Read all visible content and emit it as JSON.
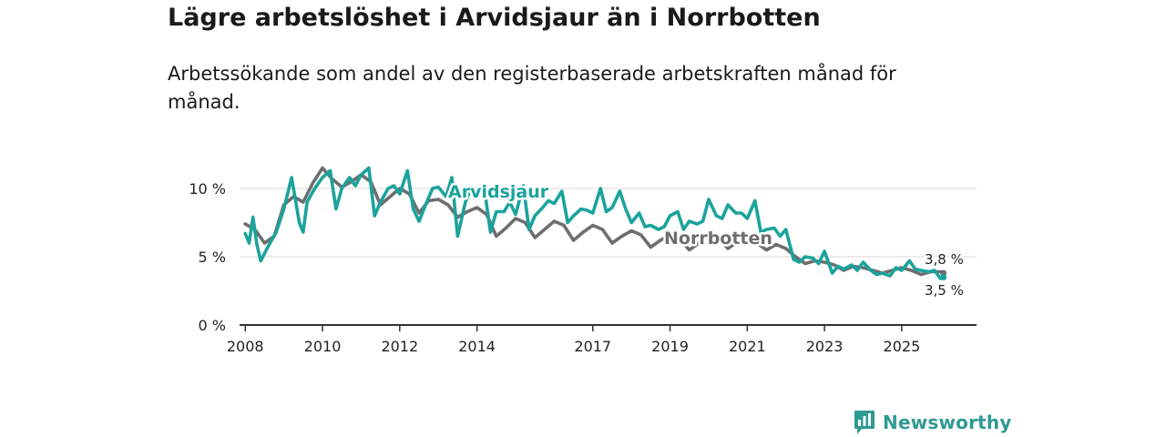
{
  "title": "Lägre arbetslöshet i Arvidsjaur än i Norrbotten",
  "subtitle": "Arbetssökande som andel av den registerbaserade arbetskraften månad för månad.",
  "brand": {
    "name": "Newsworthy",
    "color": "#2f9a92"
  },
  "chart_data": {
    "type": "line",
    "title": "Lägre arbetslöshet i Arvidsjaur än i Norrbotten",
    "xlabel": "",
    "ylabel": "",
    "xlim": [
      2007.9,
      2026.3
    ],
    "ylim": [
      0,
      10
    ],
    "grid": true,
    "x_ticks": [
      {
        "value": 2008,
        "label": "2008"
      },
      {
        "value": 2010,
        "label": "2010"
      },
      {
        "value": 2012,
        "label": "2012"
      },
      {
        "value": 2014,
        "label": "2014"
      },
      {
        "value": 2017,
        "label": "2017"
      },
      {
        "value": 2019,
        "label": "2019"
      },
      {
        "value": 2021,
        "label": "2021"
      },
      {
        "value": 2023,
        "label": "2023"
      },
      {
        "value": 2025,
        "label": "2025"
      }
    ],
    "y_ticks": [
      {
        "value": 0,
        "label": "0 %"
      },
      {
        "value": 5,
        "label": "5 %"
      },
      {
        "value": 10,
        "label": "10 %"
      }
    ],
    "series": [
      {
        "name": "Norrbotten",
        "color": "#6e6e6e",
        "end_label": "3,8 %",
        "x": [
          2008.0,
          2008.25,
          2008.5,
          2008.75,
          2009.0,
          2009.25,
          2009.5,
          2009.75,
          2010.0,
          2010.25,
          2010.5,
          2010.75,
          2011.0,
          2011.25,
          2011.5,
          2011.75,
          2012.0,
          2012.25,
          2012.5,
          2012.75,
          2013.0,
          2013.25,
          2013.5,
          2013.75,
          2014.0,
          2014.25,
          2014.5,
          2014.75,
          2015.0,
          2015.25,
          2015.5,
          2015.75,
          2016.0,
          2016.25,
          2016.5,
          2016.75,
          2017.0,
          2017.25,
          2017.5,
          2017.75,
          2018.0,
          2018.25,
          2018.5,
          2018.75,
          2019.0,
          2019.25,
          2019.5,
          2019.75,
          2020.0,
          2020.25,
          2020.5,
          2020.75,
          2021.0,
          2021.25,
          2021.5,
          2021.75,
          2022.0,
          2022.25,
          2022.5,
          2022.75,
          2023.0,
          2023.25,
          2023.5,
          2023.75,
          2024.0,
          2024.25,
          2024.5,
          2024.75,
          2025.0,
          2025.25,
          2025.5,
          2025.75,
          2026.0,
          2026.08
        ],
        "values": [
          7.4,
          7.0,
          6.0,
          6.5,
          8.8,
          9.4,
          9.0,
          10.4,
          11.5,
          10.7,
          10.1,
          10.5,
          11.0,
          10.5,
          8.8,
          9.4,
          10.0,
          9.6,
          8.2,
          9.1,
          9.2,
          8.8,
          7.9,
          8.3,
          8.6,
          8.1,
          6.5,
          7.1,
          7.8,
          7.5,
          6.4,
          7.0,
          7.6,
          7.3,
          6.2,
          6.8,
          7.3,
          7.0,
          6.0,
          6.5,
          6.9,
          6.6,
          5.7,
          6.2,
          6.6,
          6.3,
          5.5,
          6.0,
          6.6,
          6.4,
          5.6,
          6.1,
          6.4,
          6.0,
          5.5,
          5.9,
          5.6,
          5.0,
          4.5,
          4.7,
          4.6,
          4.4,
          4.0,
          4.3,
          4.2,
          4.0,
          3.8,
          4.0,
          4.2,
          4.0,
          3.7,
          3.9,
          3.9,
          3.8
        ]
      },
      {
        "name": "Arvidsjaur",
        "color": "#1ba39c",
        "end_label": "3,5 %",
        "x": [
          2008.0,
          2008.1,
          2008.2,
          2008.3,
          2008.4,
          2008.6,
          2008.8,
          2009.0,
          2009.2,
          2009.4,
          2009.5,
          2009.6,
          2009.8,
          2010.0,
          2010.2,
          2010.35,
          2010.5,
          2010.7,
          2010.85,
          2011.0,
          2011.2,
          2011.35,
          2011.5,
          2011.7,
          2011.85,
          2012.0,
          2012.2,
          2012.35,
          2012.5,
          2012.7,
          2012.85,
          2013.0,
          2013.2,
          2013.35,
          2013.5,
          2013.7,
          2013.85,
          2014.0,
          2014.2,
          2014.35,
          2014.5,
          2014.7,
          2014.85,
          2015.0,
          2015.2,
          2015.35,
          2015.5,
          2015.7,
          2015.85,
          2016.0,
          2016.2,
          2016.35,
          2016.5,
          2016.7,
          2016.85,
          2017.0,
          2017.2,
          2017.35,
          2017.5,
          2017.7,
          2017.85,
          2018.0,
          2018.2,
          2018.35,
          2018.5,
          2018.7,
          2018.85,
          2019.0,
          2019.2,
          2019.35,
          2019.5,
          2019.7,
          2019.85,
          2020.0,
          2020.2,
          2020.35,
          2020.5,
          2020.7,
          2020.85,
          2021.0,
          2021.2,
          2021.35,
          2021.5,
          2021.7,
          2021.85,
          2022.0,
          2022.2,
          2022.35,
          2022.5,
          2022.7,
          2022.85,
          2023.0,
          2023.2,
          2023.35,
          2023.5,
          2023.7,
          2023.85,
          2024.0,
          2024.2,
          2024.35,
          2024.5,
          2024.7,
          2024.85,
          2025.0,
          2025.2,
          2025.35,
          2025.5,
          2025.7,
          2025.85,
          2026.0,
          2026.08
        ],
        "values": [
          6.7,
          6.0,
          7.9,
          5.9,
          4.7,
          5.8,
          6.8,
          8.5,
          10.8,
          7.5,
          6.8,
          9.0,
          10.0,
          10.8,
          11.3,
          8.5,
          10.0,
          10.8,
          10.2,
          11.0,
          11.5,
          8.0,
          9.0,
          10.0,
          10.2,
          9.6,
          11.3,
          8.5,
          7.6,
          9.0,
          10.0,
          10.1,
          9.4,
          10.8,
          6.5,
          9.0,
          10.0,
          10.0,
          9.8,
          6.8,
          8.3,
          8.3,
          9.0,
          8.1,
          10.2,
          7.0,
          8.0,
          8.6,
          9.1,
          8.9,
          9.8,
          7.5,
          8.0,
          8.5,
          8.4,
          8.2,
          10.0,
          8.3,
          8.6,
          9.8,
          8.5,
          7.5,
          8.2,
          7.2,
          7.3,
          7.0,
          7.2,
          8.0,
          8.3,
          7.0,
          7.6,
          7.4,
          7.6,
          9.2,
          8.0,
          7.8,
          8.8,
          8.2,
          8.2,
          7.8,
          9.1,
          6.8,
          7.0,
          7.1,
          6.5,
          7.0,
          4.8,
          4.6,
          5.0,
          4.9,
          4.5,
          5.4,
          3.8,
          4.3,
          4.1,
          4.4,
          4.0,
          4.6,
          4.0,
          3.7,
          3.8,
          3.6,
          4.2,
          4.0,
          4.7,
          4.1,
          4.0,
          3.9,
          4.0,
          3.4,
          3.5
        ]
      }
    ]
  }
}
